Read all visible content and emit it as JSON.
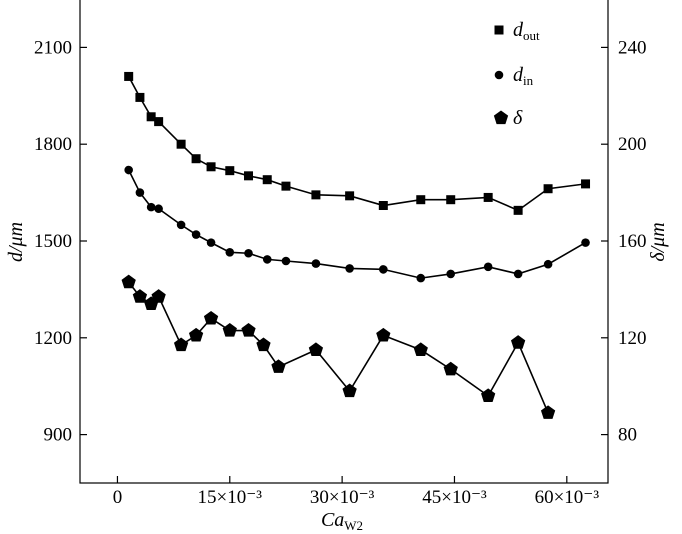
{
  "chart_data": {
    "type": "line",
    "title": "",
    "xlabel": {
      "main": "Ca",
      "sub": "W2"
    },
    "ylabel_left": "d/μm",
    "ylabel_right": "δ/μm",
    "x_ticks": [
      0,
      0.015,
      0.03,
      0.045,
      0.06
    ],
    "x_tick_labels": [
      "0",
      "15×10⁻³",
      "30×10⁻³",
      "45×10⁻³",
      "60×10⁻³"
    ],
    "y_left_ticks": [
      900,
      1200,
      1500,
      1800,
      2100
    ],
    "y_left_tick_labels": [
      "900",
      "1200",
      "1500",
      "1800",
      "2100"
    ],
    "y_right_ticks": [
      80,
      120,
      160,
      200,
      240
    ],
    "y_right_tick_labels": [
      "80",
      "120",
      "160",
      "200",
      "240"
    ],
    "xlim": [
      -0.005,
      0.0655
    ],
    "ylim_left": [
      750,
      2250
    ],
    "ylim_right": [
      60,
      260
    ],
    "grid": false,
    "legend_position": "top-right",
    "series": [
      {
        "name": "d_out",
        "legend": {
          "main": "d",
          "sub": "out"
        },
        "axis": "left",
        "marker": "square",
        "x": [
          0.0015,
          0.003,
          0.0045,
          0.0055,
          0.0085,
          0.0105,
          0.0125,
          0.015,
          0.0175,
          0.02,
          0.0225,
          0.0265,
          0.031,
          0.0355,
          0.0405,
          0.0445,
          0.0495,
          0.0535,
          0.0575,
          0.0625
        ],
        "values": [
          2010,
          1945,
          1885,
          1870,
          1800,
          1755,
          1730,
          1718,
          1702,
          1690,
          1670,
          1643,
          1640,
          1610,
          1628,
          1628,
          1635,
          1595,
          1662,
          1677
        ]
      },
      {
        "name": "d_in",
        "legend": {
          "main": "d",
          "sub": "in"
        },
        "axis": "left",
        "marker": "circle",
        "x": [
          0.0015,
          0.003,
          0.0045,
          0.0055,
          0.0085,
          0.0105,
          0.0125,
          0.015,
          0.0175,
          0.02,
          0.0225,
          0.0265,
          0.031,
          0.0355,
          0.0405,
          0.0445,
          0.0495,
          0.0535,
          0.0575,
          0.0625
        ],
        "values": [
          1720,
          1650,
          1605,
          1600,
          1550,
          1520,
          1495,
          1465,
          1462,
          1443,
          1438,
          1430,
          1415,
          1412,
          1385,
          1398,
          1420,
          1398,
          1428,
          1495
        ]
      },
      {
        "name": "δ",
        "legend": {
          "main": "δ",
          "sub": ""
        },
        "axis": "right",
        "marker": "pentagon",
        "x": [
          0.0015,
          0.003,
          0.0045,
          0.0055,
          0.0085,
          0.0105,
          0.0125,
          0.015,
          0.0175,
          0.0195,
          0.0215,
          0.0265,
          0.031,
          0.0355,
          0.0405,
          0.0445,
          0.0495,
          0.0535,
          0.0575
        ],
        "values": [
          143,
          137,
          134,
          137,
          117,
          121,
          128,
          123,
          123,
          117,
          108,
          115,
          98,
          121,
          115,
          107,
          96,
          118,
          89
        ]
      }
    ]
  }
}
